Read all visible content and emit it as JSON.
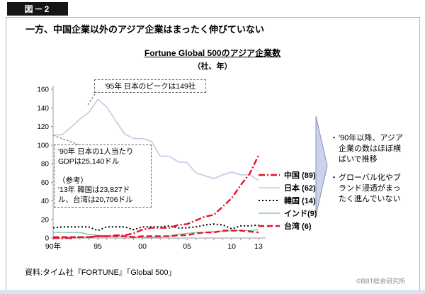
{
  "badge": "図－2",
  "page_title": "一方、中国企業以外のアジア企業はまったく伸びていない",
  "chart_data": {
    "type": "line",
    "title": "Fortune Global 500のアジア企業数",
    "subtitle": "（社、年）",
    "xlabel": "年",
    "ylabel": "社",
    "x": [
      1990,
      1991,
      1992,
      1993,
      1994,
      1995,
      1996,
      1997,
      1998,
      1999,
      2000,
      2001,
      2002,
      2003,
      2004,
      2005,
      2006,
      2007,
      2008,
      2009,
      2010,
      2011,
      2012,
      2013
    ],
    "x_ticks": [
      [
        1990,
        "90年"
      ],
      [
        1995,
        "95"
      ],
      [
        2000,
        "00"
      ],
      [
        2005,
        "05"
      ],
      [
        2010,
        "10"
      ],
      [
        2013,
        "13"
      ]
    ],
    "ylim": [
      0,
      160
    ],
    "y_tick_step": 20,
    "grid": false,
    "legend_position": "right",
    "draw_order": [
      1,
      3,
      2,
      4,
      0
    ],
    "axis_color": "#999999",
    "series": [
      {
        "name": "中国",
        "legend_label": "中国 (89)",
        "color": "#e8112d",
        "dash": "9 3 2 3",
        "width": 2.4,
        "values": [
          0,
          0,
          0,
          1,
          1,
          2,
          2,
          3,
          3,
          5,
          9,
          11,
          11,
          11,
          14,
          15,
          19,
          23,
          25,
          34,
          43,
          57,
          69,
          89
        ]
      },
      {
        "name": "日本",
        "legend_label": "日本 (62)",
        "color": "#c5c8e4",
        "dash": "",
        "width": 1.6,
        "values": [
          111,
          111,
          119,
          128,
          135,
          149,
          141,
          126,
          112,
          107,
          107,
          104,
          88,
          88,
          82,
          81,
          70,
          67,
          64,
          68,
          71,
          68,
          68,
          62
        ]
      },
      {
        "name": "韓国",
        "legend_label": "韓国 (14)",
        "color": "#000000",
        "dash": "2 3",
        "width": 2,
        "values": [
          11,
          12,
          12,
          12,
          12,
          8,
          12,
          12,
          12,
          9,
          12,
          12,
          12,
          13,
          11,
          11,
          12,
          14,
          15,
          14,
          10,
          13,
          13,
          14
        ]
      },
      {
        "name": "インド",
        "legend_label": "インド(9)",
        "color": "#72bfa0",
        "dash": "",
        "width": 1.3,
        "values": [
          6,
          6,
          6,
          6,
          4,
          3,
          2,
          2,
          2,
          1,
          1,
          1,
          1,
          2,
          4,
          5,
          6,
          6,
          7,
          7,
          8,
          8,
          8,
          9
        ]
      },
      {
        "name": "台湾",
        "legend_label": "台湾 (6)",
        "color": "#e8112d",
        "dash": "8 4",
        "width": 2.4,
        "values": [
          1,
          1,
          1,
          1,
          1,
          2,
          2,
          2,
          2,
          1,
          2,
          2,
          2,
          2,
          3,
          3,
          5,
          6,
          6,
          8,
          8,
          8,
          7,
          6
        ]
      }
    ],
    "annotations": [
      {
        "id": "peak",
        "text": "'95年 日本のピークは149社"
      },
      {
        "id": "gdp",
        "lines": [
          "'90年 日本の1人当たり",
          "GDPは25,140ドル",
          "",
          "（参考）",
          "'13年 韓国は23,827ド",
          "ル、台湾は20,706ドル"
        ]
      }
    ]
  },
  "insights": {
    "arrow_fill": "#ccd1ee",
    "arrow_stroke": "#8a8fb8",
    "bullet_char": "・",
    "bullets": [
      "'90年以降、アジア企業の数はほぼ横ばいで推移",
      "グローバル化やブランド浸透がまったく進んでいない"
    ]
  },
  "source": "資料:タイム社『FORTUNE』「Global 500」",
  "copyright": "©BBT総合研究所"
}
